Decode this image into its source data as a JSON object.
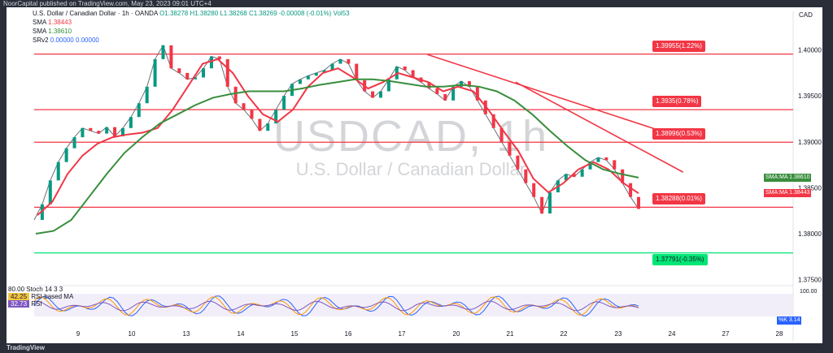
{
  "header": {
    "caption": "NoorCapital published on TradingView.com, May 23, 2023 09:01 UTC+4",
    "symbol": "U.S. Dollar / Canadian Dollar · 1h · OANDA",
    "ohlc": "O1.38278  H1.38280  L1.38268  C1.38269  -0.00008 (-0.01%)  Vol53",
    "sma1_label": "SMA",
    "sma1_value": "1.38443",
    "sma2_label": "SMA",
    "sma2_value": "1.38610",
    "srv_label": "SRv2",
    "srv_values": "0.00000  0.00000",
    "currency": "CAD"
  },
  "watermark": {
    "ticker": "USDCAD, 1h",
    "name": "U.S. Dollar / Canadian Dollar"
  },
  "brand": "TradingView",
  "stoch_legend": {
    "stoch": "Stoch 14 3 3",
    "rsi_ma_value": "42.25",
    "rsi_ma_label": "RSI-based MA",
    "rsi_value": "32.73",
    "rsi_label": "RSI",
    "k_label": "%K",
    "k_value": "3.14",
    "level_top": "80.00",
    "axis_top": "100.00"
  },
  "colors": {
    "up": "#089981",
    "down": "#f23645",
    "sma_fast": "#f23645",
    "sma_slow": "#388e3c",
    "trend": "#f23645",
    "support": "#00e676",
    "stoch_k": "#2962ff",
    "stoch_d": "#ff9800",
    "rsi": "#7e57c2"
  },
  "chart_data": {
    "type": "line",
    "title": "USDCAD, 1h",
    "x": [
      "9",
      "10",
      "13",
      "14",
      "15",
      "16",
      "17",
      "20",
      "21",
      "22",
      "23",
      "24",
      "27",
      "28"
    ],
    "ylim": [
      1.3747,
      1.4042
    ],
    "y_ticks": [
      "1.37500",
      "1.38000",
      "1.38500",
      "1.39000",
      "1.39500",
      "1.40000"
    ],
    "price_close_path": [
      1.3815,
      1.3832,
      1.3858,
      1.3878,
      1.3893,
      1.3905,
      1.3915,
      1.3912,
      1.3909,
      1.3916,
      1.3906,
      1.3915,
      1.3927,
      1.3942,
      1.396,
      1.399,
      1.4005,
      1.398,
      1.3975,
      1.3968,
      1.397,
      1.398,
      1.3993,
      1.399,
      1.396,
      1.3942,
      1.3935,
      1.3925,
      1.3912,
      1.392,
      1.3935,
      1.395,
      1.3963,
      1.3968,
      1.3972,
      1.3975,
      1.3978,
      1.3985,
      1.399,
      1.3985,
      1.3967,
      1.3955,
      1.3948,
      1.3955,
      1.3968,
      1.3982,
      1.3978,
      1.397,
      1.3965,
      1.3958,
      1.3952,
      1.3945,
      1.396,
      1.3966,
      1.396,
      1.3945,
      1.393,
      1.3915,
      1.39,
      1.3885,
      1.387,
      1.3855,
      1.384,
      1.3822,
      1.3845,
      1.3858,
      1.3865,
      1.3862,
      1.387,
      1.3878,
      1.3883,
      1.388,
      1.387,
      1.3855,
      1.384,
      1.3827
    ],
    "sma_fast": {
      "name": "SMA",
      "values": [
        1.382,
        1.3835,
        1.3865,
        1.3885,
        1.3898,
        1.3905,
        1.3908,
        1.391,
        1.3915,
        1.3935,
        1.396,
        1.3985,
        1.399,
        1.3975,
        1.395,
        1.393,
        1.3922,
        1.3935,
        1.396,
        1.3975,
        1.398,
        1.397,
        1.3958,
        1.3965,
        1.3975,
        1.397,
        1.3965,
        1.3955,
        1.396,
        1.3955,
        1.3935,
        1.3912,
        1.389,
        1.386,
        1.3845,
        1.3855,
        1.387,
        1.3878,
        1.387,
        1.3855,
        1.3844
      ]
    },
    "sma_slow": {
      "name": "SMA",
      "values": [
        1.38,
        1.3803,
        1.3815,
        1.384,
        1.3865,
        1.3888,
        1.3905,
        1.392,
        1.393,
        1.394,
        1.3948,
        1.3952,
        1.3955,
        1.3955,
        1.3955,
        1.3958,
        1.3962,
        1.3965,
        1.3968,
        1.3968,
        1.3966,
        1.3963,
        1.396,
        1.396,
        1.3962,
        1.396,
        1.3955,
        1.3945,
        1.393,
        1.3912,
        1.3895,
        1.388,
        1.387,
        1.3865,
        1.3861
      ]
    },
    "horizontal_levels": [
      {
        "price": 1.39955,
        "label": "1.39955(1.22%)",
        "color": "#f23645"
      },
      {
        "price": 1.3935,
        "label": "1.3935(0.78%)",
        "color": "#f23645"
      },
      {
        "price": 1.38996,
        "label": "1.38996(0.53%)",
        "color": "#f23645"
      },
      {
        "price": 1.38288,
        "label": "1.38288(0.01%)",
        "color": "#f23645"
      },
      {
        "price": 1.37791,
        "label": "1.37791(-0.35%)",
        "color": "#00e676"
      }
    ],
    "trendlines": [
      {
        "from": [
          0.454,
          1.3995
        ],
        "to": [
          0.769,
          1.3907
        ]
      },
      {
        "from": [
          0.57,
          1.3965
        ],
        "to": [
          0.78,
          1.3867
        ]
      }
    ],
    "axis_tags": [
      {
        "label": "SMA:MA",
        "value": "1.38610",
        "color": "#388e3c",
        "price": 1.3861
      },
      {
        "label": "SMA:MA",
        "value": "1.38443",
        "color": "#f23645",
        "price": 1.38443
      }
    ],
    "grid": false,
    "legend_position": "top-left"
  }
}
